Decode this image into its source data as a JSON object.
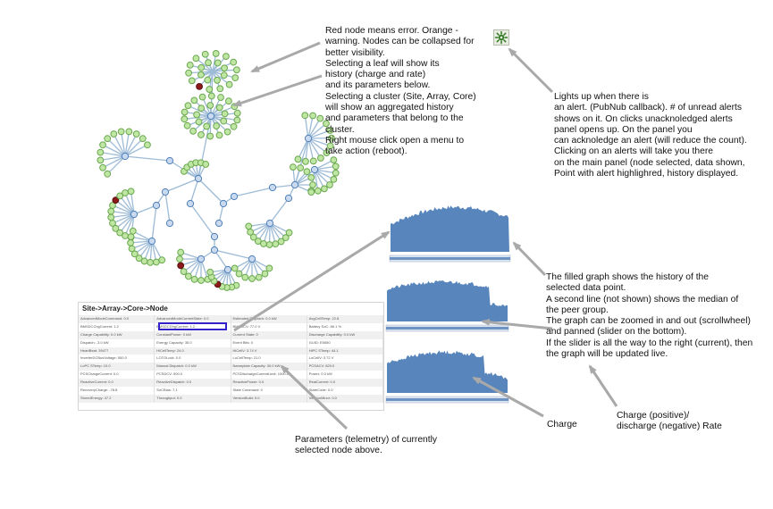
{
  "annotations": {
    "nodes_note": "Red node means error. Orange -\nwarning. Nodes can be collapsed for\nbetter visibility.\nSelecting a  leaf will show its\nhistory (charge and rate)\nand its parameters below.\nSelecting a cluster (Site, Array, Core)\nwill show an aggregated history\nand parameters that belong to the\ncluster.\nRight mouse click open a menu to\ntake action (reboot).",
    "alert_note": "Lights up when there is\nan alert.  (PubNub callback). # of unread alerts\nshows on it. On clicks unacknoledged alerts\npanel opens up. On the panel you\ncan acknoledge an alert (will reduce the count).\nClicking on an alerts will take you there\non the main panel (node selected, data shown,\nPoint with alert highlighred, history displayed.",
    "graph_note": "The filled graph shows the history of the\nselected data point.\nA second line (not shown) shows the median of\nthe peer group.\nThe graph can be zoomed in and out (scrollwheel)\nand panned (slider on the bottom).\nIf the slider is all the way to the right (current), then\nthe graph will be updated live.",
    "charge_label": "Charge",
    "rate_label": "Charge (positive)/\ndischarge (negative) Rate",
    "params_note": "Parameters (telemetry) of currently\nselected node above."
  },
  "params_panel": {
    "title": "Site->Array->Core->Node",
    "rows": [
      [
        "AdvancedModeCommand: 0.0",
        "AdvancedModeCurrentState: 0.0",
        "Estimated Dispatch: 0.0 kW",
        "AvgCellTemp: 22.8"
      ],
      [
        "BMSDCChgCurrent: 1.2",
        "BMSDCDhgCurrent: 1.2",
        "BMSDCV: 77.0 V",
        "Battery SoC: 86.1 %"
      ],
      [
        "Charge Capability: 0.0 kW",
        "ConstantPower: 0 kW",
        "Current State: 0",
        "Discharge Capability: 0.0 kW"
      ],
      [
        "Dispatch: -3.0 kW",
        "Energy Capacity: 35.0",
        "Event Bits: 0",
        "GUID: E5550"
      ],
      [
        "HeartBeat: 39477",
        "HiCellTemp: 24.0",
        "HiCellV: 3.74 V",
        "HiPC STemp: 44.1"
      ],
      [
        "InverterDCBusVoltage: 500.0",
        "LOTOLock: 0.0",
        "LoCellTemp: 21.0",
        "LoCellV: 3.72 V"
      ],
      [
        "LoPC STemp: 10.0",
        "Manual Dispatch: 0.0 kW",
        "Nameplate Capacity: 30.0 kW",
        "PCSACV: 820.0"
      ],
      [
        "PCSChargeCurrent: 0.0",
        "PCSDCV: 500.0",
        "PCSDischargeCurrentLimit: 1000.0",
        "Power: 0.0 kW"
      ],
      [
        "ReactiveCurrent: 0.0",
        "ReactiveDispatch: 0.0",
        "ReactivePower: 0.0",
        "RealCurrent: 0.0"
      ],
      [
        "RecoveryCharge: -78.8",
        "SoCBias: 7.1",
        "State Command: 0",
        "StateCode: 0.0"
      ],
      [
        "StoredEnergy: 47.2",
        "Throughput: 0.0",
        "VersionBuild: 0.0",
        "VersionMinor: 0.0"
      ]
    ]
  },
  "alert_icon": "alert-burst-icon",
  "colors": {
    "node_leaf_fill": "#bfe6a3",
    "node_leaf_stroke": "#6aa84f",
    "node_cluster_fill": "#c9daf0",
    "node_cluster_stroke": "#4f7fb8",
    "node_error_fill": "#8b1a1a",
    "edge": "#9dbbd7",
    "graph_fill": "#4f7fb8",
    "arrow": "#a9a9a9",
    "highlight": "#3322cc"
  }
}
